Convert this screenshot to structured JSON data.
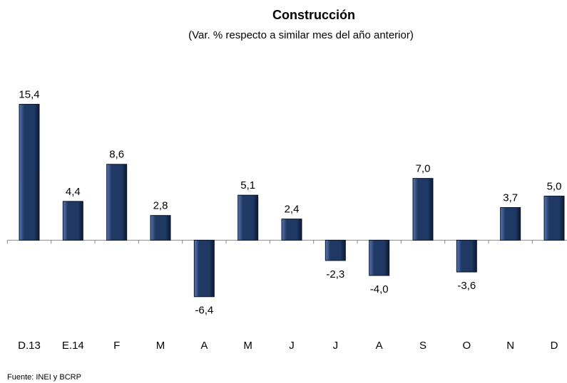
{
  "chart_data": {
    "type": "bar",
    "title": "Construcción",
    "subtitle": "(Var. % respecto a similar mes del año anterior)",
    "source": "Fuente: INEI y BCRP",
    "categories": [
      "D.13",
      "E.14",
      "F",
      "M",
      "A",
      "M",
      "J",
      "J",
      "A",
      "S",
      "O",
      "N",
      "D"
    ],
    "values": [
      15.4,
      4.4,
      8.6,
      2.8,
      -6.4,
      5.1,
      2.4,
      -2.3,
      -4.0,
      7.0,
      -3.6,
      3.7,
      5.0
    ],
    "value_labels": [
      "15,4",
      "4,4",
      "8,6",
      "2,8",
      "-6,4",
      "5,1",
      "2,4",
      "-2,3",
      "-4,0",
      "7,0",
      "-3,6",
      "3,7",
      "5,0"
    ],
    "color": "#1f3864",
    "ylim": [
      -9,
      16
    ]
  }
}
